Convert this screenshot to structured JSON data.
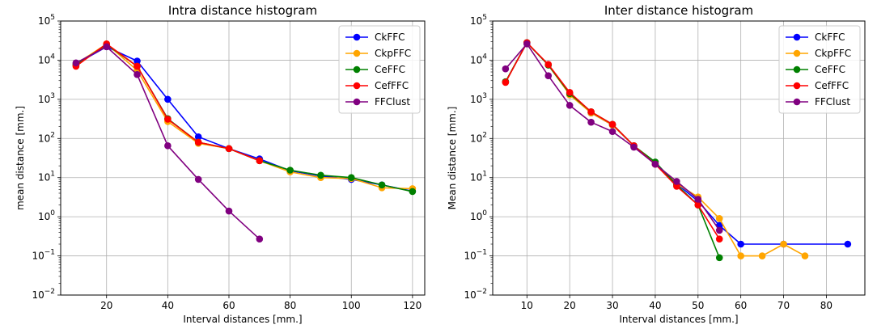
{
  "chart_data": [
    {
      "type": "line",
      "title": "Intra distance histogram",
      "xlabel": "Interval distances [mm.]",
      "ylabel": "mean distance [mm.]",
      "yscale": "log",
      "xlim": [
        5,
        124
      ],
      "ylim": [
        0.01,
        100000
      ],
      "xticks": [
        20,
        40,
        60,
        80,
        100,
        120
      ],
      "yticks": [
        {
          "base": "10",
          "exp": "−2",
          "value": 0.01
        },
        {
          "base": "10",
          "exp": "−1",
          "value": 0.1
        },
        {
          "base": "10",
          "exp": "0",
          "value": 1
        },
        {
          "base": "10",
          "exp": "1",
          "value": 10
        },
        {
          "base": "10",
          "exp": "2",
          "value": 100
        },
        {
          "base": "10",
          "exp": "3",
          "value": 1000
        },
        {
          "base": "10",
          "exp": "4",
          "value": 10000
        },
        {
          "base": "10",
          "exp": "5",
          "value": 100000
        }
      ],
      "grid": true,
      "legend_position": "top-right",
      "series": [
        {
          "name": "CkFFC",
          "color": "#0000ff",
          "x": [
            10,
            20,
            30,
            40,
            50,
            60,
            70,
            80,
            90,
            100,
            110,
            120
          ],
          "y": [
            8000,
            22000,
            9500,
            1000,
            110,
            55,
            30,
            15,
            11,
            9,
            6.5,
            4.5
          ]
        },
        {
          "name": "CkpFFC",
          "color": "#ffa500",
          "x": [
            10,
            20,
            30,
            40,
            50,
            60,
            70,
            80,
            90,
            100,
            110,
            120
          ],
          "y": [
            8000,
            26000,
            5500,
            270,
            75,
            55,
            27,
            14,
            10,
            9.5,
            5.5,
            5.2
          ]
        },
        {
          "name": "CeFFC",
          "color": "#008000",
          "x": [
            10,
            20,
            30,
            40,
            50,
            60,
            70,
            80,
            90,
            100,
            110,
            120
          ],
          "y": [
            7500,
            25000,
            7000,
            320,
            80,
            55,
            27,
            15.5,
            11.5,
            10,
            6.5,
            4.4
          ]
        },
        {
          "name": "CefFFC",
          "color": "#ff0000",
          "x": [
            10,
            20,
            30,
            40,
            50,
            60,
            70
          ],
          "y": [
            7000,
            26000,
            7000,
            310,
            80,
            55,
            27
          ]
        },
        {
          "name": "FFClust",
          "color": "#800080",
          "x": [
            10,
            20,
            30,
            40,
            50,
            60,
            70
          ],
          "y": [
            8500,
            22000,
            4300,
            65,
            9,
            1.4,
            0.27
          ]
        }
      ]
    },
    {
      "type": "line",
      "title": "Inter distance histogram",
      "xlabel": "Interval distances [mm.]",
      "ylabel": "Mean distance [mm.]",
      "yscale": "log",
      "xlim": [
        2,
        89
      ],
      "ylim": [
        0.01,
        100000
      ],
      "xticks": [
        10,
        20,
        30,
        40,
        50,
        60,
        70,
        80
      ],
      "yticks": [
        {
          "base": "10",
          "exp": "−2",
          "value": 0.01
        },
        {
          "base": "10",
          "exp": "−1",
          "value": 0.1
        },
        {
          "base": "10",
          "exp": "0",
          "value": 1
        },
        {
          "base": "10",
          "exp": "1",
          "value": 10
        },
        {
          "base": "10",
          "exp": "2",
          "value": 100
        },
        {
          "base": "10",
          "exp": "3",
          "value": 1000
        },
        {
          "base": "10",
          "exp": "4",
          "value": 10000
        },
        {
          "base": "10",
          "exp": "5",
          "value": 100000
        }
      ],
      "grid": true,
      "legend_position": "top-right",
      "series": [
        {
          "name": "CkFFC",
          "color": "#0000ff",
          "x": [
            5,
            10,
            15,
            20,
            25,
            30,
            35,
            40,
            45,
            50,
            55,
            60,
            70,
            85
          ],
          "y": [
            2800,
            28000,
            7500,
            1400,
            450,
            220,
            65,
            22,
            7,
            2.5,
            0.6,
            0.2,
            0.2,
            0.2
          ]
        },
        {
          "name": "CkpFFC",
          "color": "#ffa500",
          "x": [
            5,
            10,
            15,
            20,
            25,
            30,
            35,
            40,
            45,
            50,
            55,
            60,
            65,
            70,
            75
          ],
          "y": [
            2800,
            28000,
            7500,
            1300,
            450,
            220,
            65,
            22,
            7,
            3.2,
            0.9,
            0.1,
            0.1,
            0.2,
            0.1
          ]
        },
        {
          "name": "CeFFC",
          "color": "#008000",
          "x": [
            5,
            10,
            15,
            20,
            25,
            30,
            35,
            40,
            45,
            50,
            55
          ],
          "y": [
            2800,
            28000,
            7500,
            1400,
            480,
            230,
            65,
            25,
            6.5,
            2.0,
            0.09
          ]
        },
        {
          "name": "CefFFC",
          "color": "#ff0000",
          "x": [
            5,
            10,
            15,
            20,
            25,
            30,
            35,
            40,
            45,
            50,
            55
          ],
          "y": [
            2700,
            28000,
            7800,
            1500,
            480,
            230,
            65,
            22,
            6,
            2.0,
            0.27
          ]
        },
        {
          "name": "FFClust",
          "color": "#800080",
          "x": [
            5,
            10,
            15,
            20,
            25,
            30,
            35,
            40,
            45,
            50,
            55
          ],
          "y": [
            6000,
            26000,
            4000,
            700,
            260,
            150,
            60,
            22,
            8,
            2.8,
            0.45
          ]
        }
      ]
    }
  ]
}
